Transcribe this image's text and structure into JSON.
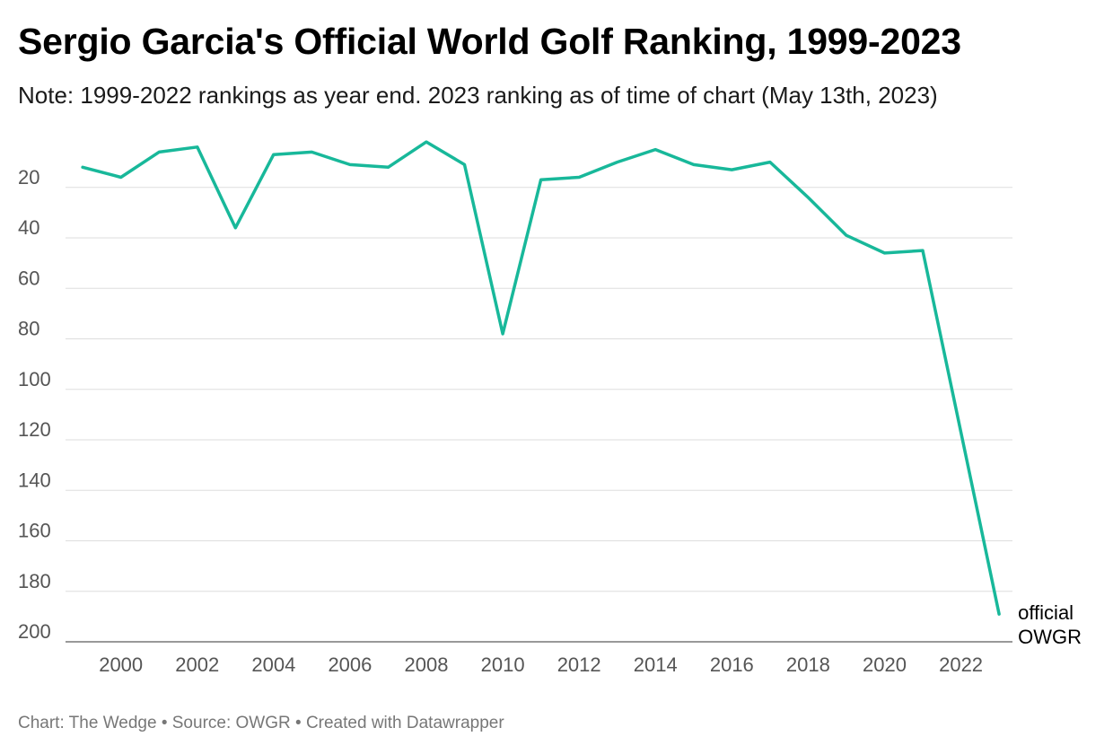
{
  "colors": {
    "line": "#18b89a",
    "grid": "#dddddd",
    "tick_text": "#555555",
    "footer_text": "#777777"
  },
  "chart_data": {
    "type": "line",
    "title": "Sergio Garcia's Official World Golf Ranking, 1999-2023",
    "subtitle": "Note: 1999-2022 rankings as year end. 2023 ranking as of time of chart (May 13th, 2023)",
    "x": [
      1999,
      2000,
      2001,
      2002,
      2003,
      2004,
      2005,
      2006,
      2007,
      2008,
      2009,
      2010,
      2011,
      2012,
      2013,
      2014,
      2015,
      2016,
      2017,
      2018,
      2019,
      2020,
      2021,
      2022,
      2023
    ],
    "series": [
      {
        "name": "official\nOWGR",
        "values": [
          12,
          16,
          6,
          4,
          36,
          7,
          6,
          11,
          12,
          2,
          11,
          78,
          17,
          16,
          10,
          5,
          11,
          13,
          10,
          24,
          39,
          46,
          45,
          117,
          189
        ]
      }
    ],
    "xlim": [
      1998.55,
      2023.35
    ],
    "xticks": [
      2000,
      2002,
      2004,
      2006,
      2008,
      2010,
      2012,
      2014,
      2016,
      2018,
      2020,
      2022
    ],
    "ylim": [
      200,
      0
    ],
    "y_inverted": true,
    "yticks": [
      20,
      40,
      60,
      80,
      100,
      120,
      140,
      160,
      180,
      200
    ],
    "xlabel": "",
    "ylabel": "",
    "grid": "horizontal",
    "legend": "direct label at end of line"
  },
  "footer": {
    "text": "Chart: The Wedge • Source: OWGR • Created with Datawrapper"
  }
}
